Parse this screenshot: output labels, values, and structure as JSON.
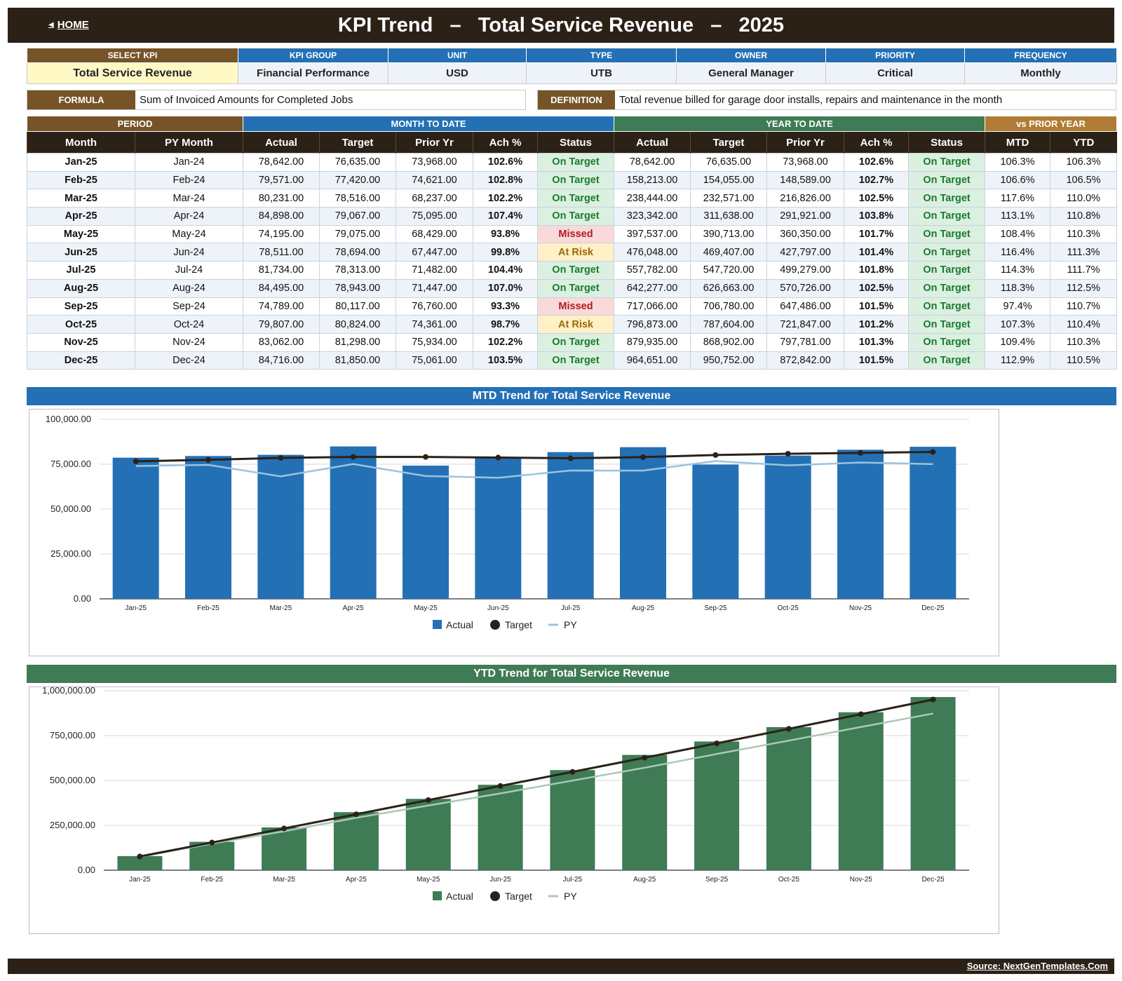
{
  "header": {
    "home_label": "HOME",
    "title": "KPI Trend   –   Total Service Revenue   –   2025"
  },
  "kpi_meta": {
    "headers": [
      "SELECT KPI",
      "KPI GROUP",
      "UNIT",
      "TYPE",
      "OWNER",
      "PRIORITY",
      "FREQUENCY"
    ],
    "values": [
      "Total Service Revenue",
      "Financial Performance",
      "USD",
      "UTB",
      "General Manager",
      "Critical",
      "Monthly"
    ]
  },
  "formula": {
    "label": "FORMULA",
    "text": "Sum of Invoiced Amounts for Completed Jobs"
  },
  "definition": {
    "label": "DEFINITION",
    "text": "Total revenue billed for garage door installs, repairs and maintenance in the month"
  },
  "table": {
    "groups": [
      "PERIOD",
      "MONTH TO DATE",
      "YEAR TO DATE",
      "vs PRIOR YEAR"
    ],
    "columns": [
      "Month",
      "PY Month",
      "Actual",
      "Target",
      "Prior Yr",
      "Ach %",
      "Status",
      "Actual",
      "Target",
      "Prior Yr",
      "Ach %",
      "Status",
      "MTD",
      "YTD"
    ],
    "rows": [
      [
        "Jan-25",
        "Jan-24",
        "78,642.00",
        "76,635.00",
        "73,968.00",
        "102.6%",
        "On Target",
        "78,642.00",
        "76,635.00",
        "73,968.00",
        "102.6%",
        "On Target",
        "106.3%",
        "106.3%"
      ],
      [
        "Feb-25",
        "Feb-24",
        "79,571.00",
        "77,420.00",
        "74,621.00",
        "102.8%",
        "On Target",
        "158,213.00",
        "154,055.00",
        "148,589.00",
        "102.7%",
        "On Target",
        "106.6%",
        "106.5%"
      ],
      [
        "Mar-25",
        "Mar-24",
        "80,231.00",
        "78,516.00",
        "68,237.00",
        "102.2%",
        "On Target",
        "238,444.00",
        "232,571.00",
        "216,826.00",
        "102.5%",
        "On Target",
        "117.6%",
        "110.0%"
      ],
      [
        "Apr-25",
        "Apr-24",
        "84,898.00",
        "79,067.00",
        "75,095.00",
        "107.4%",
        "On Target",
        "323,342.00",
        "311,638.00",
        "291,921.00",
        "103.8%",
        "On Target",
        "113.1%",
        "110.8%"
      ],
      [
        "May-25",
        "May-24",
        "74,195.00",
        "79,075.00",
        "68,429.00",
        "93.8%",
        "Missed",
        "397,537.00",
        "390,713.00",
        "360,350.00",
        "101.7%",
        "On Target",
        "108.4%",
        "110.3%"
      ],
      [
        "Jun-25",
        "Jun-24",
        "78,511.00",
        "78,694.00",
        "67,447.00",
        "99.8%",
        "At Risk",
        "476,048.00",
        "469,407.00",
        "427,797.00",
        "101.4%",
        "On Target",
        "116.4%",
        "111.3%"
      ],
      [
        "Jul-25",
        "Jul-24",
        "81,734.00",
        "78,313.00",
        "71,482.00",
        "104.4%",
        "On Target",
        "557,782.00",
        "547,720.00",
        "499,279.00",
        "101.8%",
        "On Target",
        "114.3%",
        "111.7%"
      ],
      [
        "Aug-25",
        "Aug-24",
        "84,495.00",
        "78,943.00",
        "71,447.00",
        "107.0%",
        "On Target",
        "642,277.00",
        "626,663.00",
        "570,726.00",
        "102.5%",
        "On Target",
        "118.3%",
        "112.5%"
      ],
      [
        "Sep-25",
        "Sep-24",
        "74,789.00",
        "80,117.00",
        "76,760.00",
        "93.3%",
        "Missed",
        "717,066.00",
        "706,780.00",
        "647,486.00",
        "101.5%",
        "On Target",
        "97.4%",
        "110.7%"
      ],
      [
        "Oct-25",
        "Oct-24",
        "79,807.00",
        "80,824.00",
        "74,361.00",
        "98.7%",
        "At Risk",
        "796,873.00",
        "787,604.00",
        "721,847.00",
        "101.2%",
        "On Target",
        "107.3%",
        "110.4%"
      ],
      [
        "Nov-25",
        "Nov-24",
        "83,062.00",
        "81,298.00",
        "75,934.00",
        "102.2%",
        "On Target",
        "879,935.00",
        "868,902.00",
        "797,781.00",
        "101.3%",
        "On Target",
        "109.4%",
        "110.3%"
      ],
      [
        "Dec-25",
        "Dec-24",
        "84,716.00",
        "81,850.00",
        "75,061.00",
        "103.5%",
        "On Target",
        "964,651.00",
        "950,752.00",
        "872,842.00",
        "101.5%",
        "On Target",
        "112.9%",
        "110.5%"
      ]
    ]
  },
  "colors": {
    "brown": "#765427",
    "blue": "#2470b5",
    "green": "#3f7b55",
    "tan": "#b07c35",
    "dark": "#2b2117",
    "py_mtd": "#9cc3e0",
    "py_ytd": "#a9c9b6"
  },
  "chart_data": [
    {
      "type": "bar",
      "title": "MTD Trend for Total Service Revenue",
      "categories": [
        "Jan-25",
        "Feb-25",
        "Mar-25",
        "Apr-25",
        "May-25",
        "Jun-25",
        "Jul-25",
        "Aug-25",
        "Sep-25",
        "Oct-25",
        "Nov-25",
        "Dec-25"
      ],
      "series": [
        {
          "name": "Actual",
          "kind": "bar",
          "color": "#2470b5",
          "values": [
            78642,
            79571,
            80231,
            84898,
            74195,
            78511,
            81734,
            84495,
            74789,
            79807,
            83062,
            84716
          ]
        },
        {
          "name": "Target",
          "kind": "line-marker",
          "color": "#2b2117",
          "values": [
            76635,
            77420,
            78516,
            79067,
            79075,
            78694,
            78313,
            78943,
            80117,
            80824,
            81298,
            81850
          ]
        },
        {
          "name": "PY",
          "kind": "line",
          "color": "#9cc3e0",
          "values": [
            73968,
            74621,
            68237,
            75095,
            68429,
            67447,
            71482,
            71447,
            76760,
            74361,
            75934,
            75061
          ]
        }
      ],
      "yticks": [
        "0.00",
        "25,000.00",
        "50,000.00",
        "75,000.00",
        "100,000.00"
      ],
      "ylim": [
        0,
        100000
      ],
      "legend": "bottom",
      "grid": true
    },
    {
      "type": "bar",
      "title": "YTD Trend for Total Service Revenue",
      "categories": [
        "Jan-25",
        "Feb-25",
        "Mar-25",
        "Apr-25",
        "May-25",
        "Jun-25",
        "Jul-25",
        "Aug-25",
        "Sep-25",
        "Oct-25",
        "Nov-25",
        "Dec-25"
      ],
      "series": [
        {
          "name": "Actual",
          "kind": "bar",
          "color": "#3f7b55",
          "values": [
            78642,
            158213,
            238444,
            323342,
            397537,
            476048,
            557782,
            642277,
            717066,
            796873,
            879935,
            964651
          ]
        },
        {
          "name": "Target",
          "kind": "line-marker",
          "color": "#2b2117",
          "values": [
            76635,
            154055,
            232571,
            311638,
            390713,
            469407,
            547720,
            626663,
            706780,
            787604,
            868902,
            950752
          ]
        },
        {
          "name": "PY",
          "kind": "line",
          "color": "#a9c9b6",
          "values": [
            73968,
            148589,
            216826,
            291921,
            360350,
            427797,
            499279,
            570726,
            647486,
            721847,
            797781,
            872842
          ]
        }
      ],
      "yticks": [
        "0.00",
        "250,000.00",
        "500,000.00",
        "750,000.00",
        "1,000,000.00"
      ],
      "ylim": [
        0,
        1000000
      ],
      "legend": "bottom",
      "grid": true
    }
  ],
  "footer": {
    "source": "Source: NextGenTemplates.Com"
  }
}
